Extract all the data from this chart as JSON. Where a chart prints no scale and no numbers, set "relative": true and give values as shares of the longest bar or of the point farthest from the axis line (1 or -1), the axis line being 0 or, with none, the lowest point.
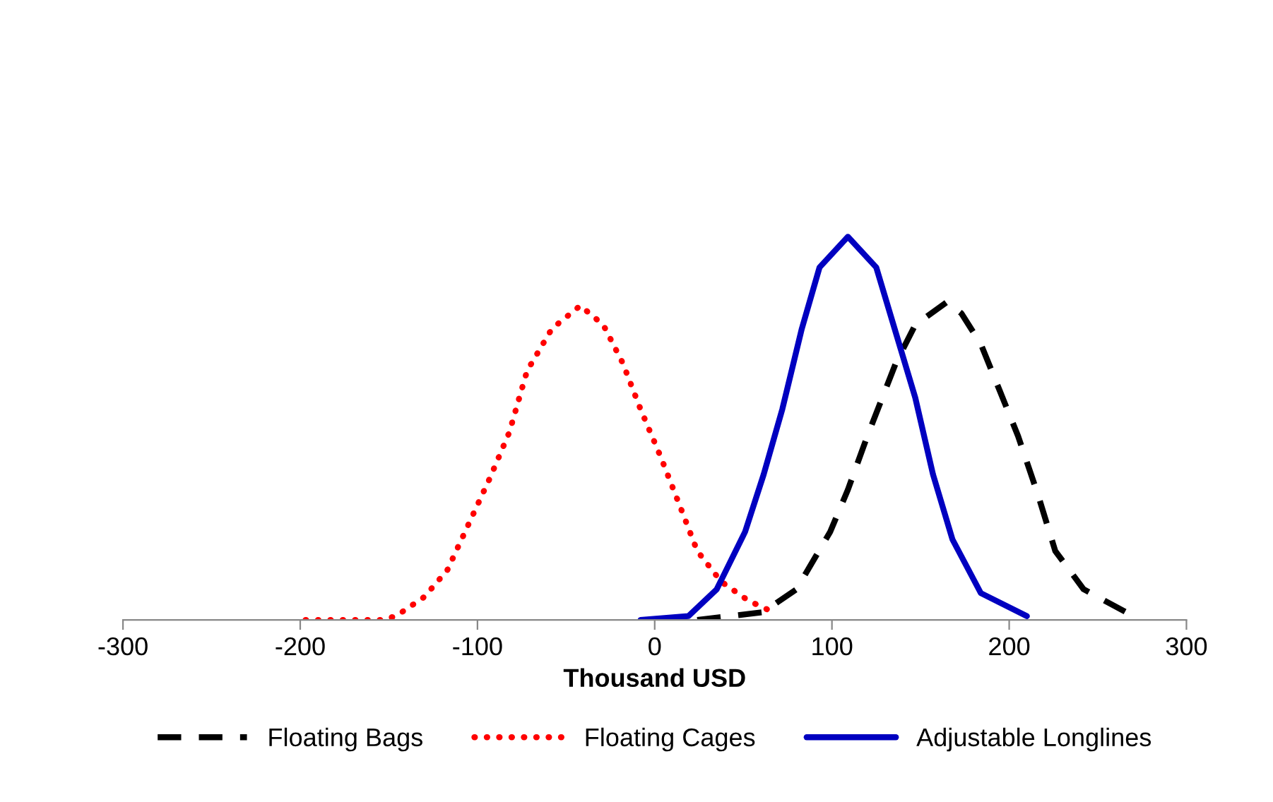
{
  "chart_data": {
    "type": "line",
    "relative": true,
    "xlabel": "Thousand USD",
    "xlim": [
      -300,
      300
    ],
    "xticks": [
      -300,
      -200,
      -100,
      0,
      100,
      200,
      300
    ],
    "legend": "bottom",
    "grid": false,
    "series": [
      {
        "name": "Floating Bags",
        "color": "#000000",
        "line_style": "dashed",
        "x": [
          24,
          61,
          80,
          99,
          109,
          120,
          136,
          147,
          165,
          173,
          184,
          194.5,
          205,
          216,
          226,
          242,
          266
        ],
        "values": [
          0,
          0.02,
          0.08,
          0.23,
          0.34,
          0.48,
          0.67,
          0.77,
          0.83,
          0.8,
          0.72,
          0.6,
          0.48,
          0.33,
          0.18,
          0.08,
          0.02
        ]
      },
      {
        "name": "Floating Cages",
        "color": "#ff0000",
        "line_style": "dotted",
        "x": [
          -197,
          -154,
          -146,
          -130,
          -117,
          -104,
          -93,
          -82,
          -72,
          -58,
          -42,
          -29,
          -18,
          -8,
          3,
          14,
          24,
          37.5,
          53,
          67
        ],
        "values": [
          0,
          0,
          0.01,
          0.06,
          0.13,
          0.26,
          0.37,
          0.49,
          0.65,
          0.76,
          0.82,
          0.77,
          0.67,
          0.55,
          0.43,
          0.3,
          0.18,
          0.1,
          0.05,
          0.02
        ]
      },
      {
        "name": "Adjustable Longlines",
        "color": "#0000c0",
        "line_style": "solid",
        "x": [
          -8,
          19,
          35,
          51,
          61.5,
          72,
          83,
          93,
          109,
          125,
          136,
          147,
          157,
          168,
          184,
          210
        ],
        "values": [
          0,
          0.01,
          0.08,
          0.23,
          0.38,
          0.55,
          0.76,
          0.92,
          1,
          0.92,
          0.75,
          0.58,
          0.38,
          0.21,
          0.07,
          0.01
        ]
      }
    ]
  }
}
